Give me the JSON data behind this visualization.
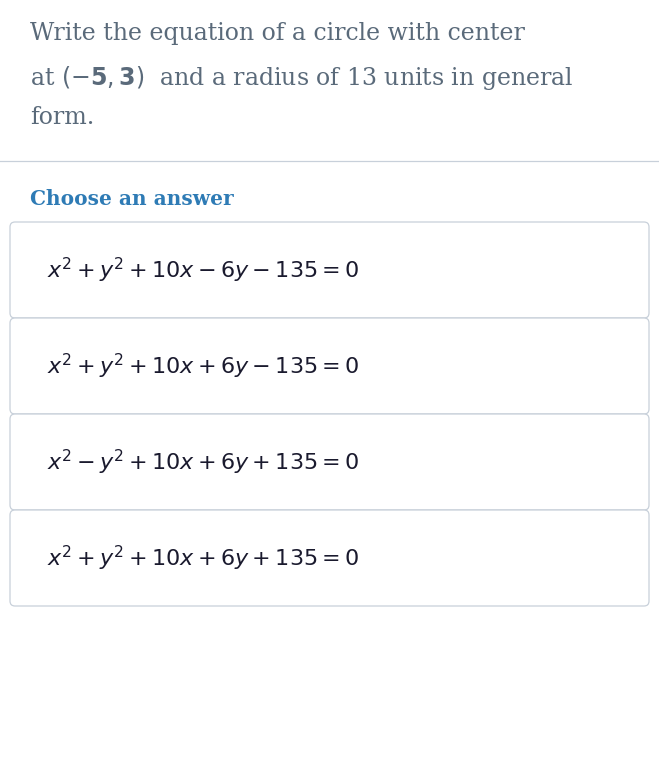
{
  "background_color": "#ffffff",
  "question_lines": [
    "Write the equation of a circle with center",
    "at $(-\\mathbf{5}, \\mathbf{3})$  and a radius of 13 units in general",
    "form."
  ],
  "question_color": "#5a6a7a",
  "choose_answer_text": "Choose an answer",
  "choose_answer_color": "#2e7bb5",
  "answers": [
    "$x^2 + y^2 + 10x - 6y - 135 = 0$",
    "$x^2 + y^2 + 10x + 6y - 135 = 0$",
    "$x^2 - y^2 + 10x + 6y + 135 = 0$",
    "$x^2 + y^2 + 10x + 6y + 135 = 0$"
  ],
  "answer_color": "#1a1a2e",
  "box_edge_color": "#c8d0da",
  "box_bg_color": "#ffffff",
  "divider_color": "#c8d0da",
  "fig_width": 6.59,
  "fig_height": 7.64,
  "question_fontsize": 17,
  "choose_fontsize": 14.5,
  "answer_fontsize": 16
}
